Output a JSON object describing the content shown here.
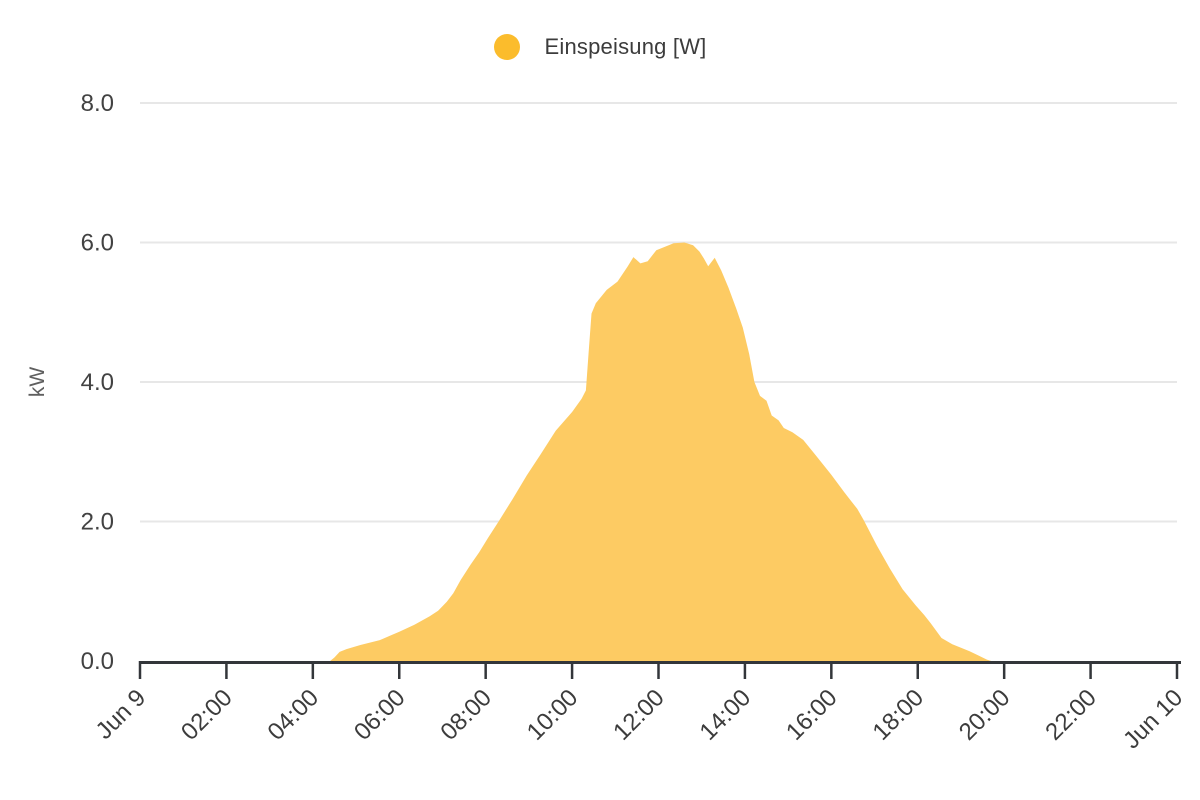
{
  "page": {
    "background": "#FFFFFF"
  },
  "colors": {
    "series": "#FBBC2C",
    "area_fill": "#FDCB63",
    "grid": "#E7E7E7",
    "axis": "#33363A",
    "x_tick_label": "#3C3C3C",
    "y_tick_label": "#424242",
    "axis_title": "#5F5F5F",
    "legend_text": "#3C3C3C"
  },
  "chart_data": {
    "type": "area",
    "ylabel": "kW",
    "xlabel": "",
    "grid": true,
    "legend_position": "top-center",
    "ylim": [
      0,
      8.6
    ],
    "x_range_hours": [
      0,
      24
    ],
    "x_unit": "hours since Jun 9 00:00",
    "series": [
      {
        "name": "Einspeisung [W]",
        "color": "#FBBC2C",
        "fill_color": "#FDCB63",
        "points": [
          [
            0,
            0
          ],
          [
            4.4,
            0
          ],
          [
            4.5,
            0.05
          ],
          [
            4.62,
            0.13
          ],
          [
            4.78,
            0.17
          ],
          [
            5.1,
            0.23
          ],
          [
            5.55,
            0.3
          ],
          [
            6.0,
            0.42
          ],
          [
            6.35,
            0.52
          ],
          [
            6.7,
            0.64
          ],
          [
            6.9,
            0.72
          ],
          [
            7.1,
            0.85
          ],
          [
            7.25,
            0.97
          ],
          [
            7.42,
            1.16
          ],
          [
            7.65,
            1.38
          ],
          [
            7.85,
            1.56
          ],
          [
            8.05,
            1.76
          ],
          [
            8.3,
            2.0
          ],
          [
            8.62,
            2.32
          ],
          [
            8.95,
            2.66
          ],
          [
            9.28,
            2.97
          ],
          [
            9.62,
            3.3
          ],
          [
            10.0,
            3.57
          ],
          [
            10.22,
            3.76
          ],
          [
            10.32,
            3.88
          ],
          [
            10.38,
            4.4
          ],
          [
            10.45,
            4.98
          ],
          [
            10.55,
            5.13
          ],
          [
            10.8,
            5.32
          ],
          [
            11.05,
            5.44
          ],
          [
            11.28,
            5.65
          ],
          [
            11.42,
            5.79
          ],
          [
            11.58,
            5.7
          ],
          [
            11.75,
            5.73
          ],
          [
            11.95,
            5.89
          ],
          [
            12.15,
            5.94
          ],
          [
            12.35,
            5.99
          ],
          [
            12.6,
            6.0
          ],
          [
            12.8,
            5.96
          ],
          [
            12.95,
            5.87
          ],
          [
            13.05,
            5.77
          ],
          [
            13.15,
            5.66
          ],
          [
            13.3,
            5.78
          ],
          [
            13.45,
            5.6
          ],
          [
            13.62,
            5.35
          ],
          [
            13.8,
            5.05
          ],
          [
            13.95,
            4.78
          ],
          [
            14.1,
            4.4
          ],
          [
            14.22,
            4.0
          ],
          [
            14.35,
            3.8
          ],
          [
            14.5,
            3.73
          ],
          [
            14.62,
            3.52
          ],
          [
            14.78,
            3.45
          ],
          [
            14.9,
            3.34
          ],
          [
            15.1,
            3.28
          ],
          [
            15.35,
            3.17
          ],
          [
            15.65,
            2.94
          ],
          [
            16.0,
            2.67
          ],
          [
            16.3,
            2.42
          ],
          [
            16.45,
            2.3
          ],
          [
            16.6,
            2.18
          ],
          [
            16.75,
            2.02
          ],
          [
            17.05,
            1.66
          ],
          [
            17.35,
            1.33
          ],
          [
            17.65,
            1.03
          ],
          [
            17.95,
            0.8
          ],
          [
            18.15,
            0.66
          ],
          [
            18.3,
            0.54
          ],
          [
            18.55,
            0.33
          ],
          [
            18.8,
            0.24
          ],
          [
            19.0,
            0.19
          ],
          [
            19.2,
            0.14
          ],
          [
            19.4,
            0.08
          ],
          [
            19.6,
            0.02
          ],
          [
            19.7,
            0
          ],
          [
            24,
            0
          ]
        ]
      }
    ],
    "x_ticks": [
      {
        "hour": 0,
        "label": "Jun 9"
      },
      {
        "hour": 2,
        "label": "02:00"
      },
      {
        "hour": 4,
        "label": "04:00"
      },
      {
        "hour": 6,
        "label": "06:00"
      },
      {
        "hour": 8,
        "label": "08:00"
      },
      {
        "hour": 10,
        "label": "10:00"
      },
      {
        "hour": 12,
        "label": "12:00"
      },
      {
        "hour": 14,
        "label": "14:00"
      },
      {
        "hour": 16,
        "label": "16:00"
      },
      {
        "hour": 18,
        "label": "18:00"
      },
      {
        "hour": 20,
        "label": "20:00"
      },
      {
        "hour": 22,
        "label": "22:00"
      },
      {
        "hour": 24,
        "label": "Jun 10"
      }
    ],
    "y_ticks": [
      {
        "value": 8,
        "label": "8.0"
      },
      {
        "value": 6,
        "label": "6.0"
      },
      {
        "value": 4,
        "label": "4.0"
      },
      {
        "value": 2,
        "label": "2.0"
      },
      {
        "value": 0,
        "label": "0.0"
      }
    ]
  }
}
